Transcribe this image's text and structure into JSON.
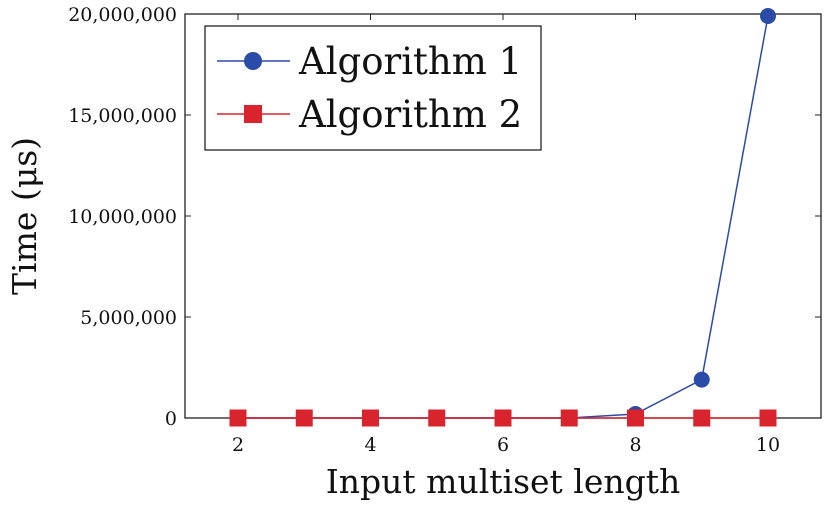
{
  "chart_data": {
    "type": "line",
    "xlabel": "Input multiset length",
    "ylabel": "Time (μs)",
    "xlim": [
      1.2,
      10.8
    ],
    "ylim": [
      0,
      20000000
    ],
    "x_ticks": [
      2,
      4,
      6,
      8,
      10
    ],
    "x_tick_labels": [
      "2",
      "4",
      "6",
      "8",
      "10"
    ],
    "y_ticks": [
      0,
      5000000,
      10000000,
      15000000,
      20000000
    ],
    "y_tick_labels": [
      "0",
      "5,000,000",
      "10,000,000",
      "15,000,000",
      "20,000,000"
    ],
    "grid": false,
    "legend_position": "top-left",
    "x": [
      2,
      3,
      4,
      5,
      6,
      7,
      8,
      9,
      10
    ],
    "series": [
      {
        "name": "Algorithm 1",
        "color": "#2b4ba8",
        "marker": "circle",
        "values": [
          0,
          0,
          0,
          0,
          0,
          0,
          200000,
          1900000,
          19900000
        ]
      },
      {
        "name": "Algorithm 2",
        "color": "#d9232d",
        "marker": "square",
        "values": [
          0,
          0,
          0,
          0,
          0,
          0,
          0,
          0,
          0
        ]
      }
    ]
  }
}
